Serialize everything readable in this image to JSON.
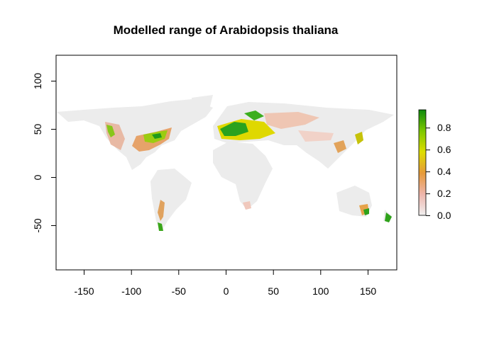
{
  "title": "Modelled range of Arabidopsis thaliana",
  "x_axis": {
    "min": -180,
    "max": 180,
    "ticks": [
      "-150",
      "-100",
      "-50",
      "0",
      "50",
      "100",
      "150"
    ]
  },
  "y_axis": {
    "min": -95,
    "max": 125,
    "ticks": [
      "100",
      "50",
      "0",
      "-50"
    ]
  },
  "legend": {
    "ticks": [
      "0.0",
      "0.2",
      "0.4",
      "0.6",
      "0.8"
    ],
    "range": [
      0,
      0.95
    ],
    "colors": [
      "#f0f0f0",
      "#eeb5ac",
      "#e69a3a",
      "#dedd00",
      "#7cc800",
      "#0e8a0e"
    ]
  },
  "colors": {
    "land": "#ececec",
    "background": "#ffffff"
  },
  "chart_data": {
    "type": "heatmap",
    "title": "Modelled range of Arabidopsis thaliana",
    "xlim": [
      -180,
      180
    ],
    "ylim": [
      -95,
      125
    ],
    "value_range": [
      0,
      0.95
    ],
    "legend_position": "right",
    "suitability_regions": [
      {
        "region": "Western & Central Europe",
        "value": 0.9
      },
      {
        "region": "Eastern Europe / Western Russia",
        "value": 0.55
      },
      {
        "region": "Eastern USA",
        "value": 0.55
      },
      {
        "region": "Western North America",
        "value": 0.5
      },
      {
        "region": "Japan",
        "value": 0.45
      },
      {
        "region": "Central Asia",
        "value": 0.2
      },
      {
        "region": "Southern Chile",
        "value": 0.75
      },
      {
        "region": "Southeast Australia",
        "value": 0.8
      },
      {
        "region": "New Zealand",
        "value": 0.85
      },
      {
        "region": "Southern Africa",
        "value": 0.15
      }
    ]
  }
}
